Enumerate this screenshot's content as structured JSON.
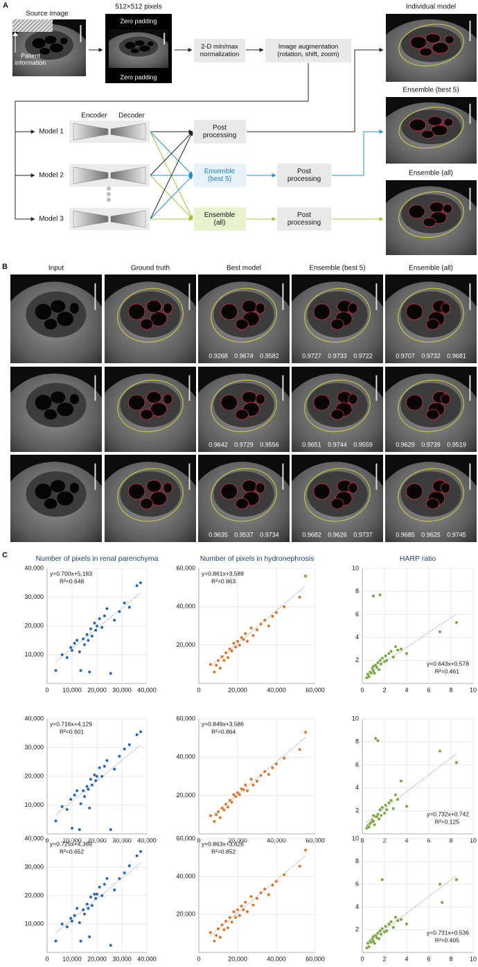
{
  "panel_a": {
    "label": "A",
    "source_title": "Source image",
    "patient_info": [
      "Patient",
      "information"
    ],
    "padding_title": "512×512 pixels",
    "padding_top": "Zero padding",
    "padding_bottom": "Zero padding",
    "normalization": [
      "2-D min/max",
      "normalization"
    ],
    "augmentation": [
      "Image augmentation",
      "(rotation, shift, zoom)"
    ],
    "encoder": "Encoder",
    "decoder": "Decoder",
    "models": [
      "Model 1",
      "Model 2",
      "Model 3"
    ],
    "post_processing": [
      [
        "Post",
        "processing"
      ],
      [
        "Post",
        "processing"
      ],
      [
        "Post",
        "processing"
      ]
    ],
    "ensemble_best": [
      "Ensemble",
      "(best 5)"
    ],
    "ensemble_all": [
      "Ensemble",
      "(all)"
    ],
    "outputs": [
      "Individual model",
      "Ensemble (best 5)",
      "Ensemble (all)"
    ]
  },
  "panel_b": {
    "label": "B",
    "columns": [
      "Input",
      "Ground truth",
      "Best model",
      "Ensemble (best 5)",
      "Ensemble (all)"
    ],
    "scores": [
      [
        [
          0.9268,
          0.9674,
          0.9582
        ],
        [
          0.9727,
          0.9733,
          0.9722
        ],
        [
          0.9707,
          0.9732,
          0.9681
        ]
      ],
      [
        [
          0.9642,
          0.9729,
          0.9556
        ],
        [
          0.9651,
          0.9744,
          0.9559
        ],
        [
          0.9629,
          0.9739,
          0.9519
        ]
      ],
      [
        [
          0.9635,
          0.9537,
          0.9734
        ],
        [
          0.9682,
          0.9626,
          0.9737
        ],
        [
          0.9685,
          0.9625,
          0.9745
        ]
      ]
    ]
  },
  "panel_c": {
    "label": "C"
  },
  "chart_data": [
    {
      "type": "scatter",
      "title": "Number of pixels in renal parenchyma",
      "color": "#2f67a6",
      "grid": true,
      "annotation_corner": "upper left",
      "x": [
        3500,
        6000,
        8000,
        9500,
        10000,
        11000,
        12000,
        13000,
        13500,
        14500,
        15000,
        16000,
        16500,
        17000,
        17500,
        18000,
        19000,
        19500,
        20000,
        21000,
        22000,
        23000,
        24000,
        25500,
        27000,
        29000,
        31000,
        33000,
        36000,
        37500
      ],
      "values": [
        4500,
        10000,
        9000,
        12500,
        11500,
        14000,
        15000,
        11000,
        4500,
        15500,
        13500,
        17000,
        15000,
        4000,
        19000,
        16500,
        21000,
        18500,
        20000,
        22500,
        19500,
        23500,
        26000,
        3500,
        22000,
        25000,
        28000,
        26500,
        34000,
        35000
      ],
      "annotations": [
        "y=0.700x+5,183",
        "R²=0.648"
      ],
      "fit": {
        "slope": 0.7,
        "intercept": 5183
      },
      "xlim": [
        0,
        40000
      ],
      "ylim": [
        0,
        40000
      ],
      "xticks": [
        0,
        {
          "value": 10000,
          "label": "10,000"
        },
        {
          "value": 20000,
          "label": "20,000"
        },
        {
          "value": 30000,
          "label": "30,000"
        },
        {
          "value": 40000,
          "label": "40,000"
        }
      ],
      "yticks": [
        {
          "value": 10000,
          "label": "10,000"
        },
        {
          "value": 20000,
          "label": "20,000"
        },
        {
          "value": 30000,
          "label": "30,000"
        },
        {
          "value": 40000,
          "label": "40,000"
        }
      ]
    },
    {
      "type": "scatter",
      "title": "Number of pixels in hydronephrosis",
      "color": "#d8772c",
      "grid": true,
      "annotation_corner": "upper left",
      "x": [
        6000,
        8000,
        9000,
        10000,
        11000,
        12000,
        13000,
        14000,
        15000,
        16000,
        17000,
        18000,
        19000,
        20000,
        21000,
        22000,
        23000,
        24000,
        25000,
        27000,
        28000,
        30000,
        32000,
        34000,
        36000,
        38000,
        40000,
        44000,
        52000,
        55000
      ],
      "values": [
        10000,
        6000,
        9500,
        12000,
        8000,
        14000,
        12000,
        16000,
        13500,
        18000,
        17000,
        21000,
        19000,
        22000,
        20000,
        24000,
        23000,
        26000,
        22000,
        29000,
        25000,
        28000,
        31000,
        33000,
        30000,
        35000,
        37000,
        40000,
        45000,
        56000
      ],
      "annotations": [
        "y=0.861x+3,589",
        "R²=0.863"
      ],
      "fit": {
        "slope": 0.861,
        "intercept": 3589
      },
      "xlim": [
        0,
        60000
      ],
      "ylim": [
        0,
        60000
      ],
      "xticks": [
        0,
        {
          "value": 20000,
          "label": "20,000"
        },
        {
          "value": 40000,
          "label": "40,000"
        },
        {
          "value": 60000,
          "label": "60,000"
        }
      ],
      "yticks": [
        {
          "value": 20000,
          "label": "20,000"
        },
        {
          "value": 40000,
          "label": "40,000"
        },
        {
          "value": 60000,
          "label": "60,000"
        }
      ]
    },
    {
      "type": "scatter",
      "title": "HARP ratio",
      "color": "#79a540",
      "grid": true,
      "annotation_corner": "lower right",
      "x": [
        0.4,
        0.5,
        0.6,
        0.7,
        0.8,
        0.9,
        1.0,
        1.0,
        1.1,
        1.2,
        1.3,
        1.4,
        1.5,
        1.6,
        1.7,
        1.8,
        2.0,
        2.1,
        2.2,
        2.4,
        2.6,
        2.8,
        3.0,
        3.2,
        3.5,
        4.0,
        7.0,
        8.5,
        1.0,
        1.6
      ],
      "values": [
        0.5,
        0.8,
        0.6,
        1.0,
        0.9,
        1.3,
        1.1,
        1.5,
        0.9,
        1.6,
        1.4,
        1.8,
        1.2,
        2.0,
        1.7,
        2.2,
        1.9,
        2.4,
        2.0,
        2.6,
        2.8,
        2.3,
        3.2,
        2.9,
        3.0,
        2.6,
        4.5,
        5.3,
        7.6,
        7.7
      ],
      "annotations": [
        "y=0.643x+0.578",
        "R²=0.461"
      ],
      "fit": {
        "slope": 0.643,
        "intercept": 0.578
      },
      "xlim": [
        0,
        10
      ],
      "ylim": [
        0,
        10
      ],
      "xticks": [
        0,
        2,
        4,
        6,
        8,
        10
      ],
      "yticks": [
        2,
        4,
        6,
        8,
        10
      ]
    },
    {
      "type": "scatter",
      "color": "#2f67a6",
      "grid": true,
      "annotation_corner": "upper left",
      "x": [
        3500,
        6000,
        8000,
        9500,
        10000,
        11000,
        12000,
        13000,
        13500,
        14500,
        15000,
        16000,
        16500,
        17000,
        17500,
        18000,
        19000,
        19500,
        20000,
        21000,
        22000,
        23000,
        24000,
        25500,
        27000,
        29000,
        31000,
        33000,
        36000,
        37500
      ],
      "values": [
        4500,
        9500,
        8500,
        12000,
        2000,
        13500,
        15000,
        1500,
        10500,
        15000,
        13000,
        16500,
        15500,
        9000,
        19000,
        17000,
        20500,
        18500,
        20000,
        23000,
        20000,
        23500,
        25500,
        1500,
        22500,
        27000,
        29500,
        31000,
        34500,
        35500
      ],
      "annotations": [
        "y=0.716x+4,129",
        "R²=0.601"
      ],
      "fit": {
        "slope": 0.716,
        "intercept": 4129
      },
      "xlim": [
        0,
        40000
      ],
      "ylim": [
        0,
        40000
      ],
      "xticks": [
        0,
        {
          "value": 10000,
          "label": "10,000"
        },
        {
          "value": 20000,
          "label": "20,000"
        },
        {
          "value": 30000,
          "label": "30,000"
        },
        {
          "value": 40000,
          "label": "40,000"
        }
      ],
      "yticks": [
        {
          "value": 10000,
          "label": "10,000"
        },
        {
          "value": 20000,
          "label": "20,000"
        },
        {
          "value": 30000,
          "label": "30,000"
        },
        {
          "value": 40000,
          "label": "40,000"
        }
      ]
    },
    {
      "type": "scatter",
      "color": "#d8772c",
      "grid": true,
      "annotation_corner": "upper left",
      "x": [
        6000,
        8000,
        9000,
        10000,
        11000,
        12000,
        13000,
        14000,
        15000,
        16000,
        17000,
        18000,
        19000,
        20000,
        21000,
        22000,
        23000,
        24000,
        25000,
        27000,
        28000,
        30000,
        32000,
        34000,
        36000,
        38000,
        40000,
        44000,
        52000,
        55000
      ],
      "values": [
        9500,
        6500,
        10000,
        11500,
        8500,
        13500,
        12500,
        15500,
        14000,
        17500,
        16500,
        20500,
        19500,
        21500,
        20500,
        23500,
        23000,
        25500,
        22500,
        28500,
        25500,
        27500,
        30500,
        32500,
        31000,
        34500,
        36500,
        39500,
        44000,
        53000
      ],
      "annotations": [
        "y=0.849x+3,586",
        "R²=0.864"
      ],
      "fit": {
        "slope": 0.849,
        "intercept": 3586
      },
      "xlim": [
        0,
        60000
      ],
      "ylim": [
        0,
        60000
      ],
      "xticks": [
        0,
        {
          "value": 20000,
          "label": "20,000"
        },
        {
          "value": 40000,
          "label": "40,000"
        },
        {
          "value": 60000,
          "label": "60,000"
        }
      ],
      "yticks": [
        {
          "value": 20000,
          "label": "20,000"
        },
        {
          "value": 40000,
          "label": "40,000"
        },
        {
          "value": 60000,
          "label": "60,000"
        }
      ]
    },
    {
      "type": "scatter",
      "color": "#79a540",
      "grid": true,
      "annotation_corner": "lower right",
      "x": [
        0.4,
        0.5,
        0.6,
        0.7,
        0.8,
        0.9,
        1.0,
        1.0,
        1.1,
        1.2,
        1.3,
        1.4,
        1.5,
        1.6,
        1.7,
        1.8,
        2.0,
        2.1,
        2.2,
        2.4,
        2.6,
        2.8,
        3.0,
        3.2,
        3.5,
        4.0,
        7.0,
        8.5,
        1.2,
        1.4
      ],
      "values": [
        0.5,
        0.7,
        0.6,
        0.9,
        1.0,
        1.2,
        1.1,
        1.6,
        0.8,
        1.5,
        1.5,
        1.7,
        1.3,
        2.1,
        1.6,
        2.3,
        1.8,
        2.5,
        2.1,
        2.7,
        2.9,
        2.2,
        3.4,
        3.0,
        4.6,
        2.4,
        7.2,
        6.2,
        8.3,
        8.1
      ],
      "annotations": [
        "y=0.732x+0.742",
        "R²=0.125"
      ],
      "fit": {
        "slope": 0.732,
        "intercept": 0.742
      },
      "xlim": [
        0,
        10
      ],
      "ylim": [
        0,
        10
      ],
      "xticks": [
        0,
        2,
        4,
        6,
        8,
        10
      ],
      "yticks": [
        2,
        4,
        6,
        8,
        10
      ]
    },
    {
      "type": "scatter",
      "color": "#2f67a6",
      "grid": true,
      "annotation_corner": "upper left",
      "x": [
        3500,
        6000,
        8000,
        9500,
        10000,
        11000,
        12000,
        13000,
        13500,
        14500,
        15000,
        16000,
        16500,
        17000,
        17500,
        18000,
        19000,
        19500,
        20000,
        21000,
        22000,
        23000,
        24000,
        25500,
        27000,
        29000,
        31000,
        33000,
        36000,
        37500
      ],
      "values": [
        4000,
        10000,
        9000,
        12000,
        11000,
        13000,
        15500,
        10500,
        4000,
        15000,
        13500,
        17000,
        15500,
        5500,
        19500,
        16500,
        20500,
        19000,
        20500,
        23000,
        20000,
        24000,
        26000,
        2500,
        22000,
        26000,
        28000,
        30500,
        34000,
        35500
      ],
      "annotations": [
        "y=0.725x+4,369",
        "R²=0.652"
      ],
      "fit": {
        "slope": 0.725,
        "intercept": 4369
      },
      "xlim": [
        0,
        40000
      ],
      "ylim": [
        0,
        40000
      ],
      "xticks": [
        0,
        {
          "value": 10000,
          "label": "10,000"
        },
        {
          "value": 20000,
          "label": "20,000"
        },
        {
          "value": 30000,
          "label": "30,000"
        },
        {
          "value": 40000,
          "label": "40,000"
        }
      ],
      "yticks": [
        {
          "value": 10000,
          "label": "10,000"
        },
        {
          "value": 20000,
          "label": "20,000"
        },
        {
          "value": 30000,
          "label": "30,000"
        },
        {
          "value": 40000,
          "label": "40,000"
        }
      ]
    },
    {
      "type": "scatter",
      "color": "#d8772c",
      "grid": true,
      "annotation_corner": "upper left",
      "x": [
        6000,
        8000,
        9000,
        10000,
        11000,
        12000,
        13000,
        14000,
        15000,
        16000,
        17000,
        18000,
        19000,
        20000,
        21000,
        22000,
        23000,
        24000,
        25000,
        27000,
        28000,
        30000,
        32000,
        34000,
        36000,
        38000,
        40000,
        44000,
        52000,
        55000
      ],
      "values": [
        10500,
        6000,
        9000,
        12500,
        8000,
        14500,
        12000,
        16500,
        13000,
        18500,
        16000,
        21500,
        18500,
        22500,
        19500,
        24500,
        22500,
        26500,
        21500,
        29500,
        25000,
        28500,
        31500,
        33500,
        30500,
        35500,
        37500,
        41000,
        45500,
        54000
      ],
      "annotations": [
        "y=0.863x+3,626",
        "R²=0.852"
      ],
      "fit": {
        "slope": 0.863,
        "intercept": 3626
      },
      "xlim": [
        0,
        60000
      ],
      "ylim": [
        0,
        60000
      ],
      "xticks": [
        0,
        {
          "value": 20000,
          "label": "20,000"
        },
        {
          "value": 40000,
          "label": "40,000"
        },
        {
          "value": 60000,
          "label": "60,000"
        }
      ],
      "yticks": [
        {
          "value": 20000,
          "label": "20,000"
        },
        {
          "value": 40000,
          "label": "40,000"
        },
        {
          "value": 60000,
          "label": "60,000"
        }
      ]
    },
    {
      "type": "scatter",
      "color": "#79a540",
      "grid": true,
      "annotation_corner": "lower right",
      "x": [
        0.4,
        0.5,
        0.6,
        0.7,
        0.8,
        0.9,
        1.0,
        1.0,
        1.1,
        1.2,
        1.3,
        1.4,
        1.5,
        1.6,
        1.7,
        1.8,
        2.0,
        2.1,
        2.2,
        2.4,
        2.6,
        2.8,
        3.0,
        3.2,
        3.5,
        4.0,
        7.0,
        8.5,
        1.8,
        7.2
      ],
      "values": [
        0.4,
        0.8,
        0.5,
        1.0,
        0.9,
        1.2,
        1.0,
        1.4,
        0.8,
        1.5,
        1.3,
        1.7,
        1.2,
        1.9,
        1.6,
        2.1,
        1.8,
        2.3,
        1.9,
        2.5,
        2.7,
        2.2,
        3.1,
        2.8,
        2.9,
        2.5,
        6.0,
        6.4,
        6.4,
        4.4
      ],
      "annotations": [
        "y=0.731x+0.536",
        "R²=0.405"
      ],
      "fit": {
        "slope": 0.731,
        "intercept": 0.536
      },
      "xlim": [
        0,
        10
      ],
      "ylim": [
        0,
        10
      ],
      "xticks": [
        0,
        2,
        4,
        6,
        8,
        10
      ],
      "yticks": [
        2,
        4,
        6,
        8,
        10
      ]
    }
  ]
}
